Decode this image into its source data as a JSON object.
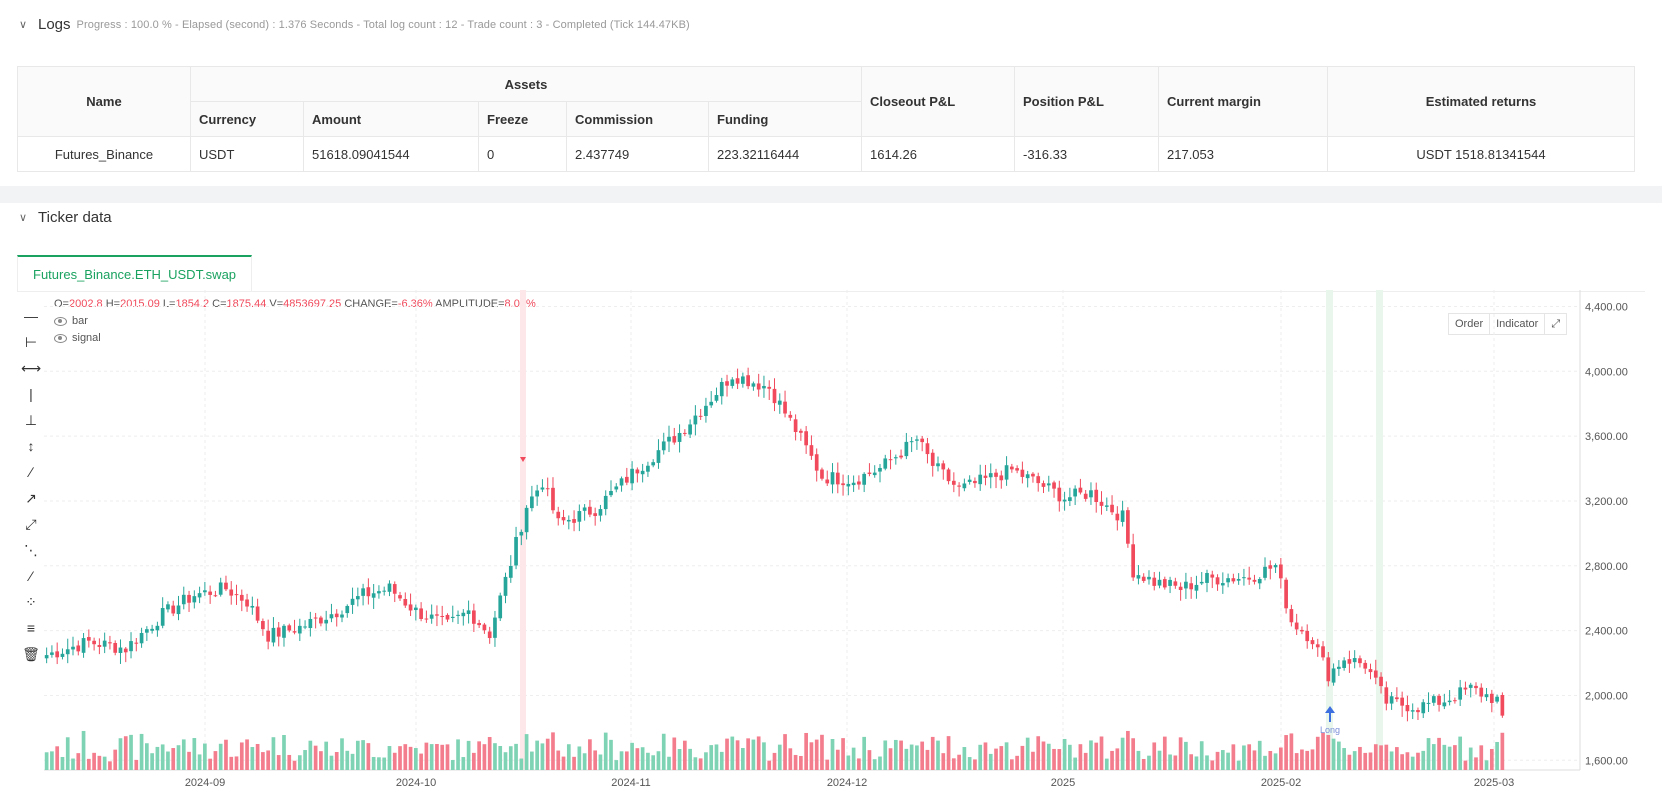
{
  "logs": {
    "title": "Logs",
    "meta": "Progress : 100.0 % - Elapsed (second) : 1.376  Seconds - Total log count : 12 - Trade count : 3 - Completed (Tick 144.47KB)"
  },
  "assets_table": {
    "headers": {
      "name": "Name",
      "assets": "Assets",
      "currency": "Currency",
      "amount": "Amount",
      "freeze": "Freeze",
      "commission": "Commission",
      "funding": "Funding",
      "closeout": "Closeout P&L",
      "position": "Position P&L",
      "margin": "Current margin",
      "returns": "Estimated returns"
    },
    "row": {
      "name": "Futures_Binance",
      "currency": "USDT",
      "amount": "51618.09041544",
      "freeze": "0",
      "commission": "2.437749",
      "funding": "223.32116444",
      "closeout": "1614.26",
      "position": "-316.33",
      "margin": "217.053",
      "returns": "USDT 1518.81341544"
    }
  },
  "ticker": {
    "title": "Ticker data",
    "tab_label": "Futures_Binance.ETH_USDT.swap",
    "ohlc": {
      "o_label": "O=",
      "o": "2002.8",
      "h_label": "H=",
      "h": "2015.09",
      "l_label": "L=",
      "l": "1854.2",
      "c_label": "C=",
      "c": "1875.44",
      "v_label": "V=",
      "v": "4853697.25",
      "change_label": "CHANGE=",
      "change": "-6.36%",
      "amp_label": "AMPLITUDE=",
      "amp": "8.03%"
    },
    "legend": [
      "bar",
      "signal"
    ],
    "buttons": {
      "order": "Order",
      "indicator": "Indicator"
    },
    "signal_label": "Long"
  },
  "colors": {
    "up": "#26a69a",
    "down": "#f04a5c",
    "accent": "#1aa260",
    "vol_up": "#7fd3b5",
    "vol_down": "#f47d8d"
  },
  "chart_data": {
    "type": "candlestick",
    "y_ticks": [
      "1,600.00",
      "2,000.00",
      "2,400.00",
      "2,800.00",
      "3,200.00",
      "3,600.00",
      "4,000.00",
      "4,400.00"
    ],
    "y_tick_values": [
      1600,
      2000,
      2400,
      2800,
      3200,
      3600,
      4000,
      4400
    ],
    "ylim": [
      1540,
      4440
    ],
    "x_ticks": [
      "2024-09",
      "2024-10",
      "2024-11",
      "2024-12",
      "2025",
      "2025-02",
      "2025-03"
    ],
    "grid": true,
    "close_anchors": [
      [
        0,
        2250
      ],
      [
        8,
        2330
      ],
      [
        15,
        2290
      ],
      [
        22,
        2500
      ],
      [
        28,
        2620
      ],
      [
        34,
        2660
      ],
      [
        38,
        2580
      ],
      [
        42,
        2370
      ],
      [
        48,
        2420
      ],
      [
        55,
        2520
      ],
      [
        60,
        2620
      ],
      [
        65,
        2660
      ],
      [
        70,
        2520
      ],
      [
        76,
        2430
      ],
      [
        80,
        2520
      ],
      [
        84,
        2380
      ],
      [
        88,
        2820
      ],
      [
        91,
        3170
      ],
      [
        94,
        3320
      ],
      [
        97,
        3060
      ],
      [
        104,
        3150
      ],
      [
        112,
        3400
      ],
      [
        120,
        3620
      ],
      [
        125,
        3800
      ],
      [
        130,
        3980
      ],
      [
        137,
        3900
      ],
      [
        142,
        3640
      ],
      [
        147,
        3350
      ],
      [
        153,
        3330
      ],
      [
        158,
        3400
      ],
      [
        165,
        3580
      ],
      [
        168,
        3420
      ],
      [
        173,
        3270
      ],
      [
        178,
        3330
      ],
      [
        183,
        3390
      ],
      [
        188,
        3310
      ],
      [
        193,
        3220
      ],
      [
        198,
        3250
      ],
      [
        201,
        3170
      ],
      [
        204,
        3100
      ],
      [
        206,
        2770
      ],
      [
        210,
        2700
      ],
      [
        215,
        2660
      ],
      [
        220,
        2720
      ],
      [
        228,
        2730
      ],
      [
        233,
        2800
      ],
      [
        236,
        2460
      ],
      [
        240,
        2350
      ],
      [
        243,
        2130
      ],
      [
        246,
        2230
      ],
      [
        250,
        2190
      ],
      [
        254,
        1960
      ],
      [
        260,
        1930
      ],
      [
        265,
        1970
      ],
      [
        270,
        2040
      ],
      [
        276,
        1960
      ]
    ],
    "n_bars": 277,
    "last_bar": {
      "o": 2002.8,
      "h": 2015.09,
      "l": 1854.2,
      "c": 1875.44
    }
  }
}
